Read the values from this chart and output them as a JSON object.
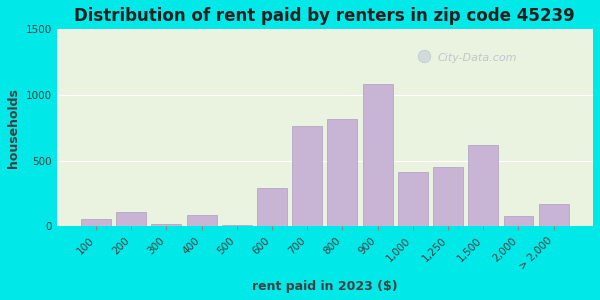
{
  "title": "Distribution of rent paid by renters in zip code 45239",
  "xlabel": "rent paid in 2023 ($)",
  "ylabel": "households",
  "bar_labels": [
    "100",
    "200",
    "300",
    "400",
    "500",
    "600",
    "700",
    "800",
    "900",
    "1,000",
    "1,250",
    "1,500",
    "2,000",
    "> 2,000"
  ],
  "bar_values": [
    55,
    110,
    20,
    85,
    10,
    290,
    760,
    820,
    1080,
    415,
    455,
    620,
    75,
    170
  ],
  "bar_color": "#c8b4d4",
  "bar_edge_color": "#b09ec0",
  "ylim": [
    0,
    1500
  ],
  "yticks": [
    0,
    500,
    1000,
    1500
  ],
  "bg_outer": "#00e8e8",
  "bg_plot": "#eaf2e0",
  "watermark": "City-Data.com",
  "title_fontsize": 12,
  "axis_label_fontsize": 9,
  "tick_fontsize": 7.5
}
